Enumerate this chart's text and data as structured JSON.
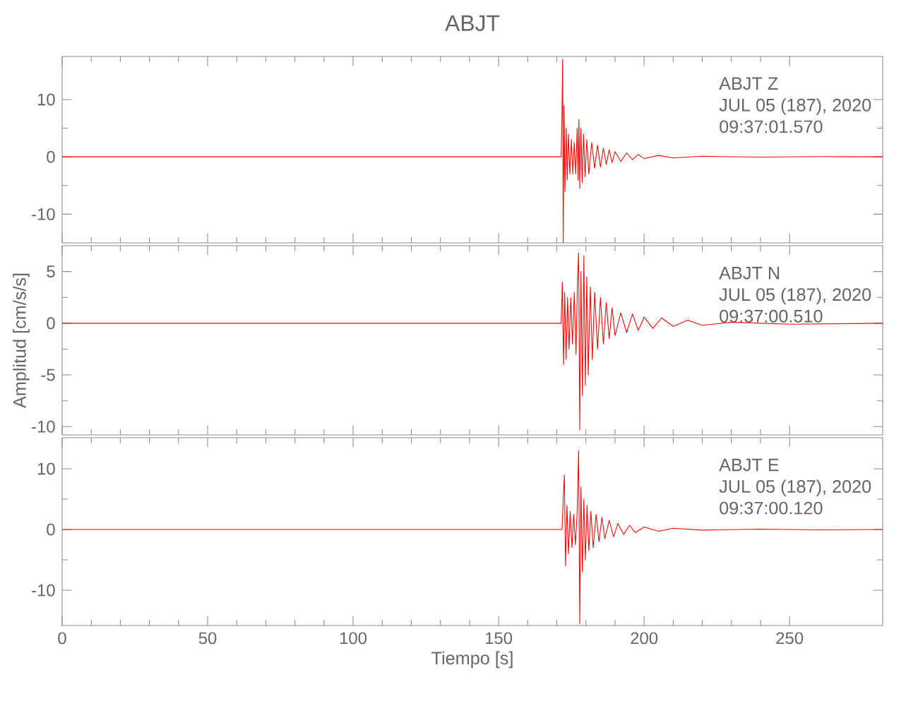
{
  "chart_data": [
    {
      "type": "line",
      "title": "ABJT",
      "annotations": [
        "ABJT   Z",
        "JUL 05 (187), 2020",
        "09:37:01.570"
      ],
      "xlim": [
        0,
        282
      ],
      "xticks": [
        0,
        50,
        100,
        150,
        200,
        250
      ],
      "ylim": [
        -15,
        17.5
      ],
      "yticks": [
        -10,
        0,
        10
      ],
      "tick_labels": "y",
      "x": [
        0,
        50,
        100,
        150,
        171.5,
        171.8,
        172.0,
        172.2,
        172.5,
        172.8,
        173.2,
        173.6,
        174,
        174.5,
        175,
        175.5,
        176,
        176.5,
        177,
        177.3,
        177.6,
        177.9,
        178.3,
        178.7,
        179.2,
        179.7,
        180.3,
        181,
        182,
        183,
        184,
        185,
        186,
        187,
        188,
        189,
        190,
        192,
        194,
        196,
        198,
        200,
        205,
        210,
        220,
        240,
        260,
        282
      ],
      "series": [
        {
          "color": "#ff0000",
          "values": [
            0,
            0,
            0,
            0,
            0,
            8,
            17,
            -15,
            9,
            -6,
            5,
            -4,
            4,
            -3,
            3,
            -3,
            2.5,
            -3,
            5,
            -4,
            6.5,
            -5.5,
            5,
            -4.5,
            4,
            -3.5,
            3,
            -3,
            2.5,
            -2,
            2,
            -1.8,
            1.5,
            -1.3,
            1.2,
            -1,
            0.9,
            -0.8,
            0.7,
            -0.5,
            0.4,
            -0.3,
            0.25,
            -0.2,
            0.1,
            -0.05,
            0.05,
            0
          ]
        }
      ]
    },
    {
      "type": "line",
      "ylabel": "Amplitud [cm/s/s]",
      "annotations": [
        "ABJT   N",
        "JUL 05 (187), 2020",
        "09:37:00.510"
      ],
      "xlim": [
        0,
        282
      ],
      "xticks": [
        0,
        50,
        100,
        150,
        200,
        250
      ],
      "ylim": [
        -10.8,
        7.5
      ],
      "yticks": [
        -10,
        -5,
        0,
        5
      ],
      "tick_labels": "y",
      "x": [
        0,
        50,
        100,
        150,
        171.5,
        171.9,
        172.3,
        172.7,
        173.2,
        173.7,
        174.2,
        174.8,
        175.4,
        176,
        176.6,
        177.1,
        177.5,
        177.9,
        178.3,
        178.8,
        179.3,
        179.8,
        180.3,
        180.8,
        181.5,
        182.2,
        183,
        184,
        185,
        186,
        187,
        188,
        189,
        190,
        192,
        194,
        196,
        198,
        200,
        203,
        206,
        210,
        215,
        220,
        230,
        250,
        282
      ],
      "series": [
        {
          "color": "#ff0000",
          "values": [
            0,
            0,
            0,
            0,
            0,
            4,
            -4,
            3,
            -3.5,
            2.5,
            -2.5,
            2.5,
            -2,
            3,
            -3,
            4,
            6.8,
            -10.3,
            5,
            -7,
            6.5,
            -6,
            4.5,
            -5,
            3.5,
            -3.5,
            3,
            -2.5,
            2.5,
            -2,
            2,
            -1.5,
            1.5,
            -1.2,
            1,
            -0.9,
            0.9,
            -0.7,
            0.6,
            -0.5,
            0.5,
            -0.3,
            0.3,
            -0.2,
            0.1,
            -0.1,
            0
          ]
        }
      ]
    },
    {
      "type": "line",
      "xlabel": "Tiempo [s]",
      "annotations": [
        "ABJT   E",
        "JUL 05 (187), 2020",
        "09:37:00.120"
      ],
      "xlim": [
        0,
        282
      ],
      "xticks": [
        0,
        50,
        100,
        150,
        200,
        250
      ],
      "ylim": [
        -15.8,
        15.1
      ],
      "yticks": [
        -10,
        0,
        10
      ],
      "x": [
        0,
        50,
        100,
        150,
        171.8,
        172.2,
        172.6,
        173.0,
        173.5,
        174,
        174.6,
        175.2,
        175.8,
        176.4,
        177,
        177.5,
        177.9,
        178.3,
        178.8,
        179.3,
        179.8,
        180.4,
        181,
        181.7,
        182.5,
        183.5,
        184.5,
        185.5,
        186.5,
        188,
        189.5,
        191,
        193,
        195,
        197,
        200,
        205,
        210,
        220,
        240,
        260,
        282
      ],
      "series": [
        {
          "color": "#ff0000",
          "values": [
            0,
            0,
            0,
            0,
            0,
            5,
            9,
            -6,
            4,
            -4,
            3,
            -3,
            2.5,
            -2.5,
            3,
            13,
            -15.5,
            7,
            -7,
            5,
            -5,
            4,
            -3.5,
            3,
            -3,
            2.5,
            -2,
            2,
            -1.5,
            1.5,
            -1.2,
            1,
            -0.8,
            0.7,
            -0.5,
            0.4,
            -0.3,
            0.2,
            -0.1,
            0.05,
            -0.05,
            0
          ]
        }
      ]
    }
  ]
}
